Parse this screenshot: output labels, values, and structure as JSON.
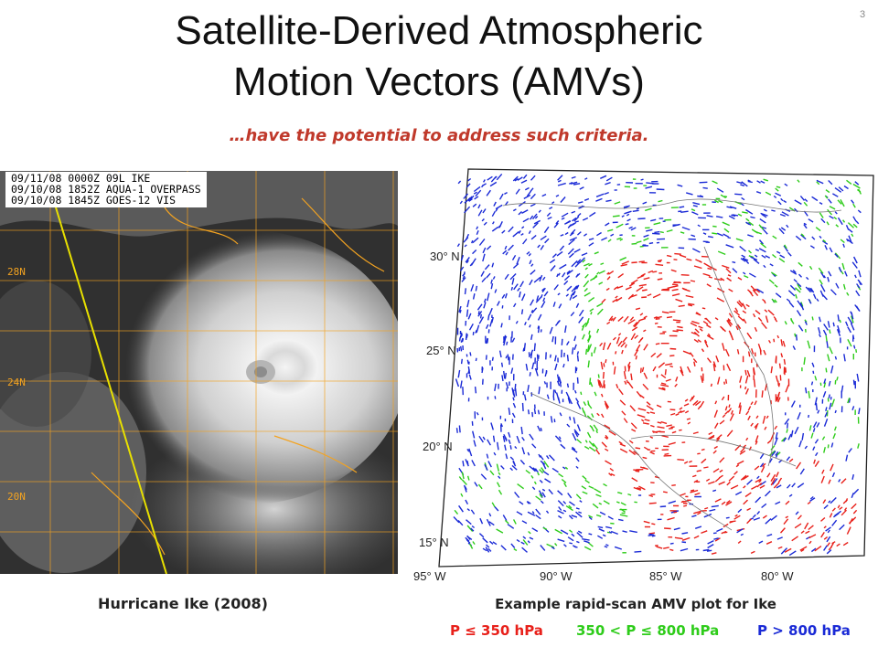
{
  "slide": {
    "number": "3",
    "title_line1": "Satellite-Derived Atmospheric",
    "title_line2": "Motion Vectors (AMVs)",
    "subtitle": "…have the potential to address such criteria.",
    "subtitle_color": "#c0392b"
  },
  "left_image": {
    "overlay_lines": [
      "09/11/08 0000Z 09L IKE",
      "09/10/08 1852Z AQUA-1 OVERPASS",
      "09/10/08 1845Z GOES-12 VIS"
    ],
    "latitude_labels": [
      "28N",
      "24N",
      "20N"
    ],
    "caption": "Hurricane Ike (2008)",
    "grid_color": "#f3a321",
    "track_color": "#e8e000"
  },
  "right_map": {
    "latitude_labels": [
      "30",
      "25",
      "20",
      "15"
    ],
    "latitude_suffix": "N",
    "longitude_labels": [
      "95",
      "90",
      "85",
      "80"
    ],
    "longitude_suffix": "W",
    "caption": "Example rapid-scan AMV plot for Ike"
  },
  "legend": {
    "items": [
      {
        "label": "P ≤ 350 hPa",
        "color": "#e8201a"
      },
      {
        "label": "350 < P ≤ 800 hPa",
        "color": "#2ecc1a"
      },
      {
        "label": "P > 800 hPa",
        "color": "#1a2ad6"
      }
    ]
  }
}
